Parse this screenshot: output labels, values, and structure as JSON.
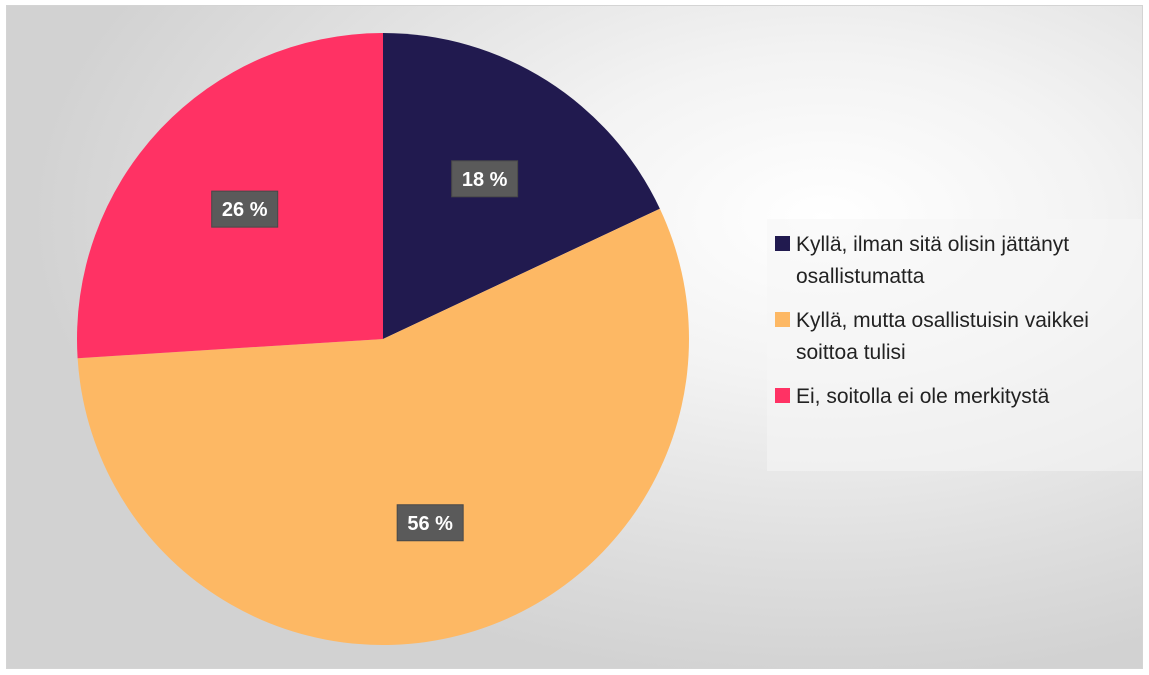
{
  "chart_data": {
    "type": "pie",
    "slices": [
      {
        "label": "Kyllä, ilman sitä olisin jättänyt osallistumatta",
        "value": 18,
        "display": "18 %",
        "color": "#211a4f"
      },
      {
        "label": "Kyllä, mutta osallistuisin vaikkei soittoa tulisi",
        "value": 56,
        "display": "56 %",
        "color": "#fdb864"
      },
      {
        "label": "Ei, soitolla ei ole merkitystä",
        "value": 26,
        "display": "26 %",
        "color": "#ff3264"
      }
    ],
    "legend_position": "right"
  }
}
